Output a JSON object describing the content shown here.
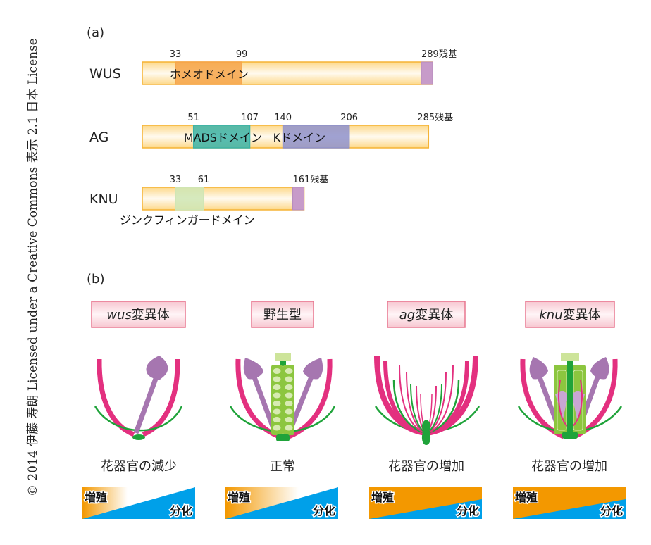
{
  "copyright": "© 2014 伊藤 寿朗 Licensed under a Creative Commons 表示 2.1 日本 License",
  "panel_a": {
    "label": "(a)",
    "proteins": [
      {
        "name": "WUS",
        "length_label": "289残基",
        "length": 289,
        "domains": [
          {
            "name": "ホメオドメイン",
            "start": 33,
            "end": 99,
            "color": "#f6a54a"
          }
        ]
      },
      {
        "name": "AG",
        "length_label": "285残基",
        "length": 285,
        "domains": [
          {
            "name": "MADSドメイン",
            "start": 51,
            "end": 107,
            "color": "#3bb3a8"
          },
          {
            "name": "Kドメイン",
            "start": 140,
            "end": 206,
            "color": "#8f92cc"
          }
        ]
      },
      {
        "name": "KNU",
        "length_label": "161残基",
        "length": 161,
        "domains": [
          {
            "name": "ジンクフィンガードメイン",
            "start": 33,
            "end": 61,
            "color": "#cfe6b5"
          }
        ]
      }
    ],
    "colors": {
      "body": "#fde7b0",
      "border": "#f5b335",
      "tail": "#c79bc9"
    }
  },
  "panel_b": {
    "label": "(b)",
    "columns": [
      {
        "genotype_italic": "wus",
        "genotype_suffix": "変異体",
        "caption": "花器官の減少",
        "proliferation": "増殖",
        "differentiation": "分化",
        "level": "low"
      },
      {
        "genotype_italic": "",
        "genotype_suffix": "野生型",
        "caption": "正常",
        "proliferation": "増殖",
        "differentiation": "分化",
        "level": "normal"
      },
      {
        "genotype_italic": "ag",
        "genotype_suffix": "変異体",
        "caption": "花器官の増加",
        "proliferation": "増殖",
        "differentiation": "分化",
        "level": "high"
      },
      {
        "genotype_italic": "knu",
        "genotype_suffix": "変異体",
        "caption": "花器官の増加",
        "proliferation": "増殖",
        "differentiation": "分化",
        "level": "high"
      }
    ],
    "colors": {
      "petal": "#e3307f",
      "sepal": "#1fa33a",
      "stamen": "#a676b0",
      "carpel": "#8cc63f",
      "proliferation": "#f39800",
      "differentiation": "#00a0e9",
      "label_border": "#e8768f"
    }
  }
}
